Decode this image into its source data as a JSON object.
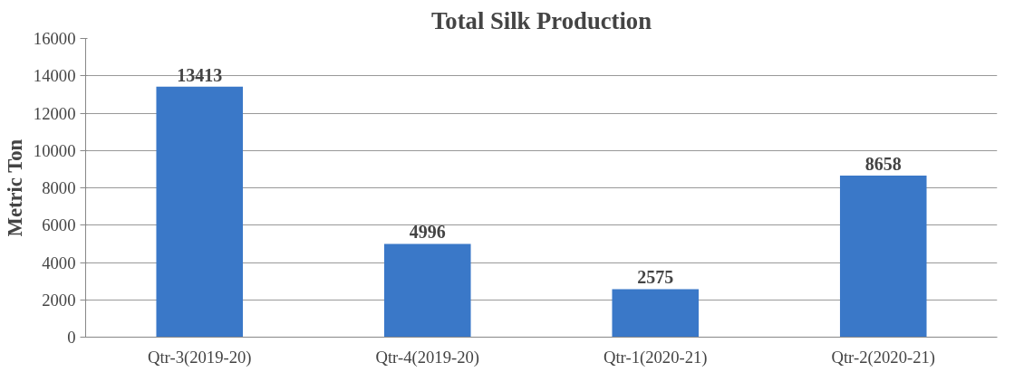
{
  "chart_data": {
    "type": "bar",
    "title": "Total Silk Production",
    "ylabel": "Metric Ton",
    "categories": [
      "Qtr-3(2019-20)",
      "Qtr-4(2019-20)",
      "Qtr-1(2020-21)",
      "Qtr-2(2020-21)"
    ],
    "values": [
      13413,
      4996,
      2575,
      8658
    ],
    "color": "#3a78c8",
    "ylim": [
      0,
      16000
    ],
    "yticks": [
      0,
      2000,
      4000,
      6000,
      8000,
      10000,
      12000,
      14000,
      16000
    ],
    "grid": "y",
    "data_labels": true
  }
}
